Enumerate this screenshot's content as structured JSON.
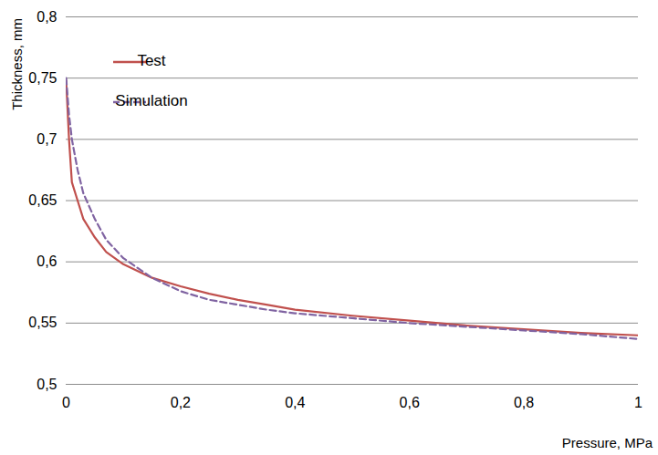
{
  "chart_data": {
    "type": "line",
    "x_label": "Pressure, MPa",
    "y_label": "Thickness, mm",
    "x": [
      0,
      0.005,
      0.01,
      0.02,
      0.03,
      0.05,
      0.07,
      0.1,
      0.15,
      0.2,
      0.25,
      0.3,
      0.35,
      0.4,
      0.5,
      0.6,
      0.7,
      0.8,
      0.9,
      1.0
    ],
    "series": [
      {
        "name": "Test",
        "color": "#c0504d",
        "line_style": "solid",
        "values": [
          0.748,
          0.7,
          0.665,
          0.65,
          0.635,
          0.62,
          0.608,
          0.598,
          0.587,
          0.58,
          0.574,
          0.569,
          0.565,
          0.561,
          0.556,
          0.552,
          0.548,
          0.545,
          0.542,
          0.54
        ]
      },
      {
        "name": "Simulation",
        "color": "#8064a2",
        "line_style": "dashed",
        "values": [
          0.75,
          0.72,
          0.7,
          0.675,
          0.656,
          0.635,
          0.618,
          0.603,
          0.587,
          0.576,
          0.569,
          0.565,
          0.561,
          0.558,
          0.554,
          0.55,
          0.547,
          0.544,
          0.541,
          0.537
        ]
      }
    ],
    "xlim": [
      0,
      1
    ],
    "xticks": [
      0,
      {
        "value": 0.2,
        "label": "0,2"
      },
      {
        "value": 0.4,
        "label": "0,4"
      },
      {
        "value": 0.6,
        "label": "0,6"
      },
      {
        "value": 0.8,
        "label": "0,8"
      },
      1
    ],
    "ylim": [
      0.5,
      0.8
    ],
    "yticks": [
      {
        "value": 0.5,
        "label": "0,5"
      },
      {
        "value": 0.55,
        "label": "0,55"
      },
      {
        "value": 0.6,
        "label": "0,6"
      },
      {
        "value": 0.65,
        "label": "0,65"
      },
      {
        "value": 0.7,
        "label": "0,7"
      },
      {
        "value": 0.75,
        "label": "0,75"
      },
      {
        "value": 0.8,
        "label": "0,8"
      }
    ],
    "grid": true,
    "legend": "top-left"
  }
}
